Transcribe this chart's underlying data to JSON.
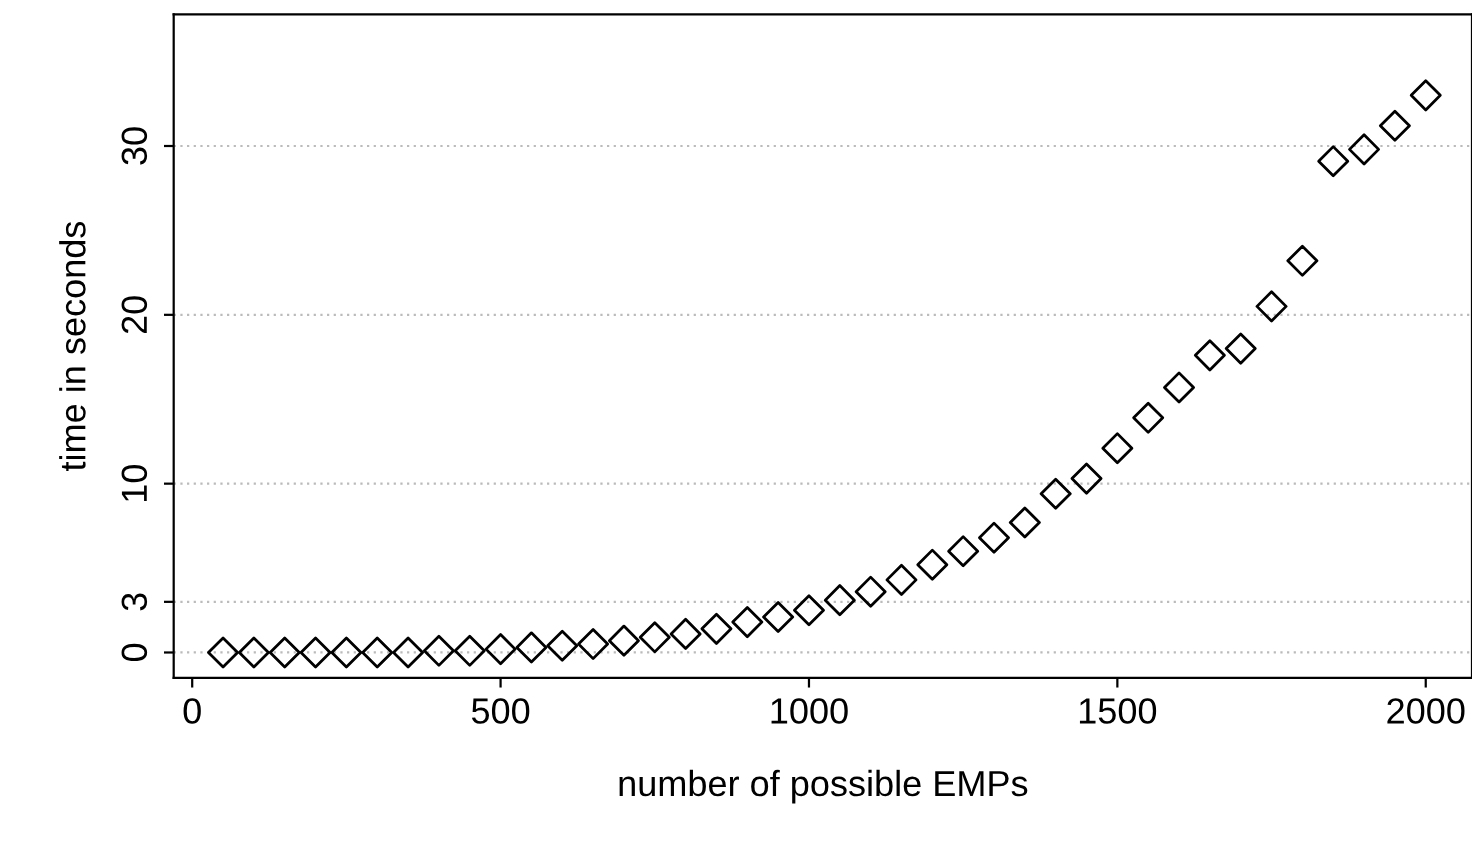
{
  "chart_data": {
    "type": "scatter",
    "xlabel": "number of possible EMPs",
    "ylabel": "time in seconds",
    "x": [
      50,
      100,
      150,
      200,
      250,
      300,
      350,
      400,
      450,
      500,
      550,
      600,
      650,
      700,
      750,
      800,
      850,
      900,
      950,
      1000,
      1050,
      1100,
      1150,
      1200,
      1250,
      1300,
      1350,
      1400,
      1450,
      1500,
      1550,
      1600,
      1650,
      1700,
      1750,
      1800,
      1850,
      1900,
      1950,
      2000
    ],
    "values": [
      0,
      0,
      0,
      0,
      0,
      0,
      0,
      0.1,
      0.1,
      0.2,
      0.3,
      0.4,
      0.5,
      0.7,
      0.9,
      1.1,
      1.4,
      1.8,
      2.1,
      2.5,
      3.1,
      3.6,
      4.3,
      5.2,
      6.0,
      6.8,
      7.7,
      9.4,
      10.3,
      12.1,
      13.9,
      15.7,
      17.6,
      18.0,
      20.5,
      23.2,
      29.1,
      29.8,
      31.2,
      33.0
    ],
    "color": "#000000",
    "marker": "diamond",
    "xlim": [
      -30,
      2075
    ],
    "ylim": [
      -1.5,
      37.8
    ],
    "xticks": [
      0,
      500,
      1000,
      1500,
      2000
    ],
    "yticks": [
      0,
      3,
      10,
      20,
      30
    ],
    "grid": "y"
  }
}
